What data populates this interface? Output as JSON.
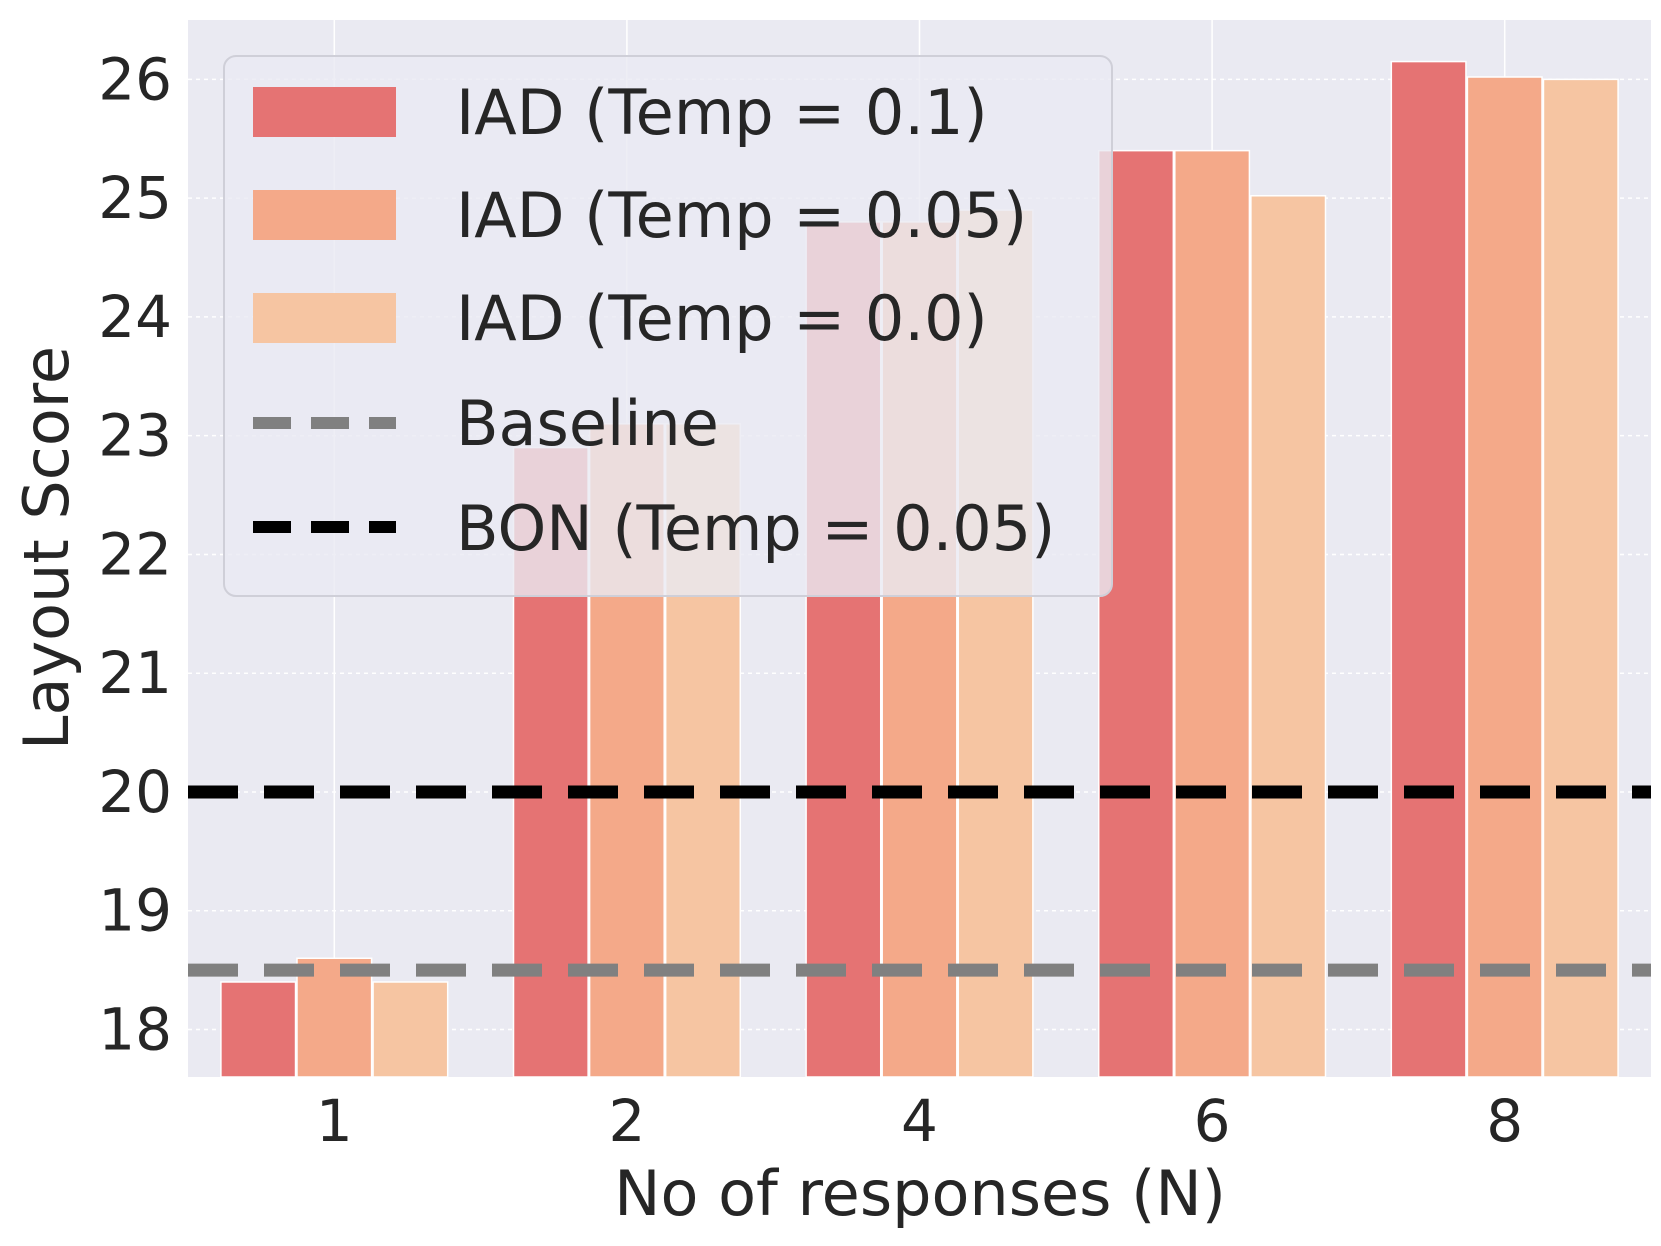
{
  "chart_data": {
    "type": "bar",
    "title": "",
    "xlabel": "No of responses (N)",
    "ylabel": "Layout Score",
    "categories": [
      "1",
      "2",
      "4",
      "6",
      "8"
    ],
    "series": [
      {
        "name": "IAD (Temp = 0.1)",
        "color": "#e57373",
        "values": [
          18.4,
          22.9,
          24.8,
          25.4,
          26.15
        ]
      },
      {
        "name": "IAD (Temp = 0.05)",
        "color": "#f4a989",
        "values": [
          18.6,
          23.1,
          24.8,
          25.4,
          26.02
        ]
      },
      {
        "name": "IAD (Temp = 0.0)",
        "color": "#f6c5a2",
        "values": [
          18.4,
          23.1,
          24.9,
          25.02,
          26.0
        ]
      }
    ],
    "reference_lines": [
      {
        "name": "Baseline",
        "value": 18.5,
        "color": "#808080"
      },
      {
        "name": "BON (Temp = 0.05)",
        "value": 20.0,
        "color": "#000000"
      }
    ],
    "ylim": [
      17.6,
      26.5
    ],
    "yticks": [
      18,
      19,
      20,
      21,
      22,
      23,
      24,
      25,
      26
    ],
    "grid": true,
    "background": "#eaeaf2",
    "legend_position": "top-left"
  }
}
